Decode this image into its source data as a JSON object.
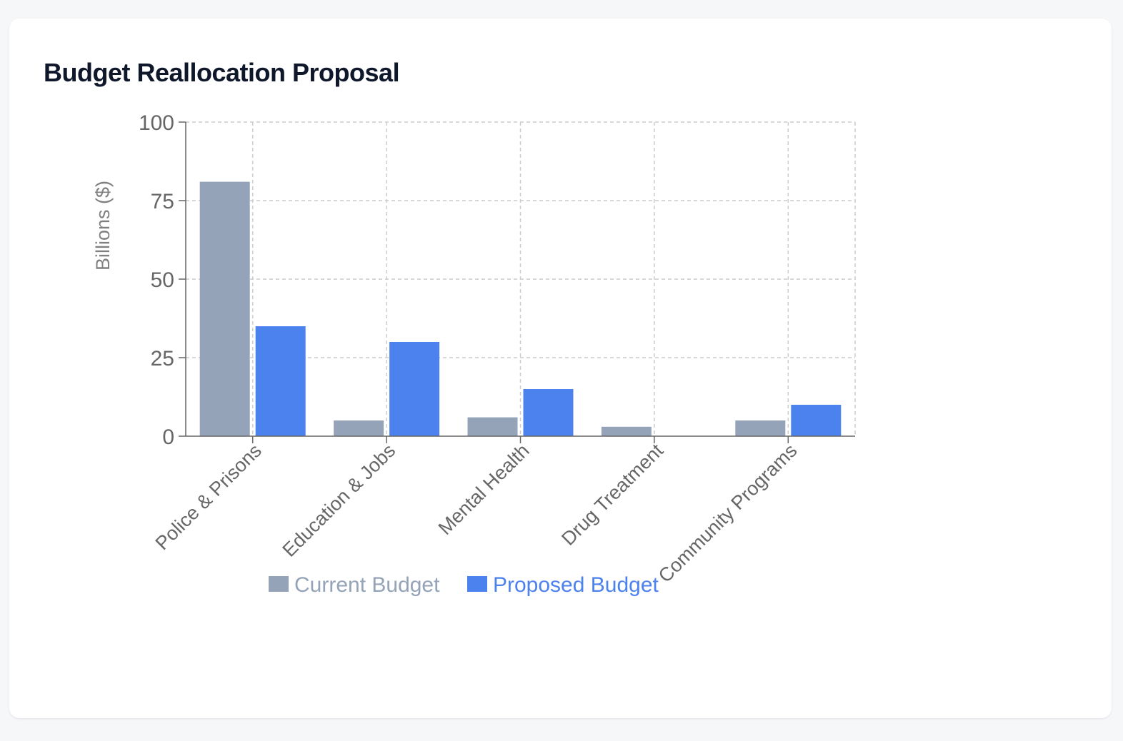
{
  "card": {
    "title": "Budget Reallocation Proposal"
  },
  "chart_data": {
    "type": "bar",
    "title": "Budget Reallocation Proposal",
    "xlabel": "",
    "ylabel": "Billions ($)",
    "ylim": [
      0,
      100
    ],
    "yticks": [
      0,
      25,
      50,
      75,
      100
    ],
    "grid": true,
    "legend_position": "bottom",
    "categories": [
      "Police & Prisons",
      "Education & Jobs",
      "Mental Health",
      "Drug Treatment",
      "Community Programs"
    ],
    "series": [
      {
        "name": "Current Budget",
        "color": "#94a3b8",
        "values": [
          81,
          5,
          6,
          3,
          5
        ]
      },
      {
        "name": "Proposed Budget",
        "color": "#4c82ed",
        "values": [
          35,
          30,
          15,
          0,
          10
        ]
      }
    ]
  }
}
